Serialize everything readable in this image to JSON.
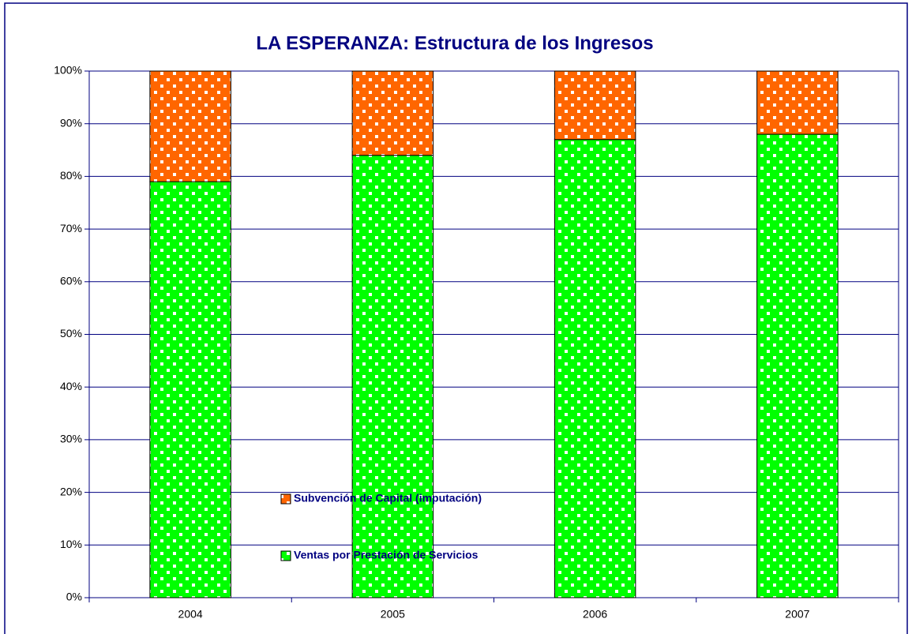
{
  "chart_data": {
    "type": "stacked_bar_percent",
    "title": "LA ESPERANZA: Estructura de los Ingresos",
    "categories": [
      "2004",
      "2005",
      "2006",
      "2007"
    ],
    "series": [
      {
        "name": "Ventas por Prestación de Servicios",
        "color": "#00ff00",
        "values": [
          79,
          84,
          87,
          88
        ]
      },
      {
        "name": "Subvención de Capital (imputación)",
        "color": "#ff6600",
        "values": [
          21,
          16,
          13,
          12
        ]
      }
    ],
    "ylim": [
      0,
      100
    ],
    "yticks": [
      {
        "value": 0,
        "label": "0%"
      },
      {
        "value": 10,
        "label": "10%"
      },
      {
        "value": 20,
        "label": "20%"
      },
      {
        "value": 30,
        "label": "30%"
      },
      {
        "value": 40,
        "label": "40%"
      },
      {
        "value": 50,
        "label": "50%"
      },
      {
        "value": 60,
        "label": "60%"
      },
      {
        "value": 70,
        "label": "70%"
      },
      {
        "value": 80,
        "label": "80%"
      },
      {
        "value": 90,
        "label": "90%"
      },
      {
        "value": 100,
        "label": "100%"
      }
    ],
    "grid": true,
    "legend_position": "lower center",
    "pattern": "dots"
  }
}
